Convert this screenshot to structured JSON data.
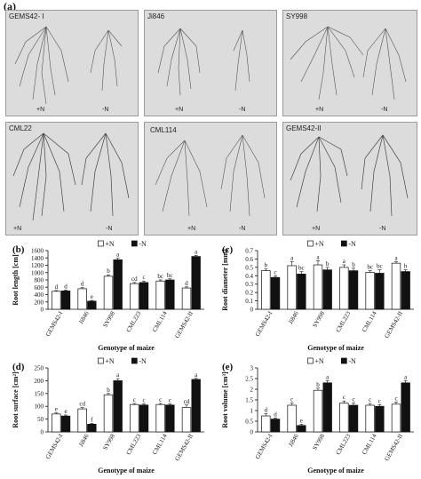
{
  "figure_label": "(a)",
  "photos": {
    "rows": [
      {
        "genotypes": [
          "GEMS42- I",
          "Ji846",
          "SY998"
        ],
        "treatments": [
          "+N",
          "-N"
        ]
      },
      {
        "genotypes": [
          "CML22",
          "CML114",
          "GEMS42-II"
        ],
        "treatments": [
          "+N",
          "-N"
        ]
      }
    ]
  },
  "chart_data": [
    {
      "panel": "(b)",
      "type": "bar",
      "ylabel": "Root length [cm]",
      "xlabel": "Genotype of maize",
      "legend": [
        "+N",
        "-N"
      ],
      "categories": [
        "GEMS42-I",
        "Ji846",
        "SY998",
        "CML223",
        "CML114",
        "GEMS42-II"
      ],
      "ylim": [
        0,
        1600
      ],
      "yticks": [
        "0",
        "200",
        "400",
        "600",
        "800",
        "1000",
        "1200",
        "1400",
        "1600"
      ],
      "series": [
        {
          "name": "+N",
          "values": [
            490,
            560,
            900,
            700,
            770,
            580
          ],
          "err": [
            20,
            30,
            40,
            30,
            30,
            30
          ],
          "letters": [
            "d",
            "d",
            "b",
            "cd",
            "bc",
            "d"
          ]
        },
        {
          "name": "-N",
          "values": [
            500,
            220,
            1350,
            730,
            800,
            1440
          ],
          "err": [
            20,
            20,
            40,
            40,
            30,
            30
          ],
          "letters": [
            "d",
            "e",
            "a",
            "c",
            "bc",
            "a"
          ]
        }
      ]
    },
    {
      "panel": "(c)",
      "type": "bar",
      "ylabel": "Root diameter [mm]",
      "xlabel": "Genotype of maize",
      "legend": [
        "+N",
        "-N"
      ],
      "categories": [
        "GEMS42-I",
        "Ji846",
        "SY998",
        "CML223",
        "CML114",
        "GEMS42-II"
      ],
      "ylim": [
        0,
        0.7
      ],
      "yticks": [
        "0",
        "0.1",
        "0.2",
        "0.3",
        "0.4",
        "0.5",
        "0.6",
        "0.7"
      ],
      "series": [
        {
          "name": "+N",
          "values": [
            0.46,
            0.52,
            0.53,
            0.5,
            0.44,
            0.55
          ],
          "err": [
            0.02,
            0.05,
            0.05,
            0.03,
            0.02,
            0.02
          ],
          "letters": [
            "b",
            "a",
            "a",
            "a",
            "bc",
            "a"
          ]
        },
        {
          "name": "-N",
          "values": [
            0.38,
            0.42,
            0.47,
            0.46,
            0.43,
            0.45
          ],
          "err": [
            0.02,
            0.03,
            0.03,
            0.03,
            0.04,
            0.02
          ],
          "letters": [
            "c",
            "bc",
            "b",
            "b",
            "bc",
            "b"
          ]
        }
      ]
    },
    {
      "panel": "(d)",
      "type": "bar",
      "ylabel": "Root surface [cm²]",
      "xlabel": "Genotype of maize",
      "legend": [
        "+N",
        "-N"
      ],
      "categories": [
        "GEMS42-I",
        "Ji846",
        "SY998",
        "CML223",
        "CML114",
        "GEMS42-II"
      ],
      "ylim": [
        0,
        250
      ],
      "yticks": [
        "0",
        "50",
        "100",
        "150",
        "200",
        "250"
      ],
      "series": [
        {
          "name": "+N",
          "values": [
            70,
            90,
            145,
            107,
            107,
            95
          ],
          "err": [
            4,
            5,
            5,
            4,
            4,
            10
          ],
          "letters": [
            "e",
            "cd",
            "b",
            "c",
            "c",
            "cd"
          ]
        },
        {
          "name": "-N",
          "values": [
            62,
            30,
            200,
            105,
            105,
            205
          ],
          "err": [
            4,
            3,
            8,
            4,
            4,
            4
          ],
          "letters": [
            "e",
            "f",
            "a",
            "c",
            "c",
            "a"
          ]
        }
      ]
    },
    {
      "panel": "(e)",
      "type": "bar",
      "ylabel": "Root volume [cm³]",
      "xlabel": "Genotype of maize",
      "legend": [
        "+N",
        "-N"
      ],
      "categories": [
        "GEMS42-I",
        "Ji846",
        "SY998",
        "CML223",
        "CML114",
        "GEMS42-II"
      ],
      "ylim": [
        0,
        3
      ],
      "yticks": [
        "0",
        "0.5",
        "1",
        "1.5",
        "2",
        "2.5",
        "3"
      ],
      "series": [
        {
          "name": "+N",
          "values": [
            0.75,
            1.25,
            1.95,
            1.35,
            1.25,
            1.3
          ],
          "err": [
            0.1,
            0.1,
            0.1,
            0.1,
            0.08,
            0.1
          ],
          "letters": [
            "d",
            "c",
            "b",
            "c",
            "c",
            "c"
          ]
        },
        {
          "name": "-N",
          "values": [
            0.6,
            0.3,
            2.3,
            1.25,
            1.2,
            2.3
          ],
          "err": [
            0.05,
            0.05,
            0.1,
            0.1,
            0.08,
            0.1
          ],
          "letters": [
            "d",
            "e",
            "a",
            "c",
            "c",
            "a"
          ]
        }
      ]
    }
  ]
}
